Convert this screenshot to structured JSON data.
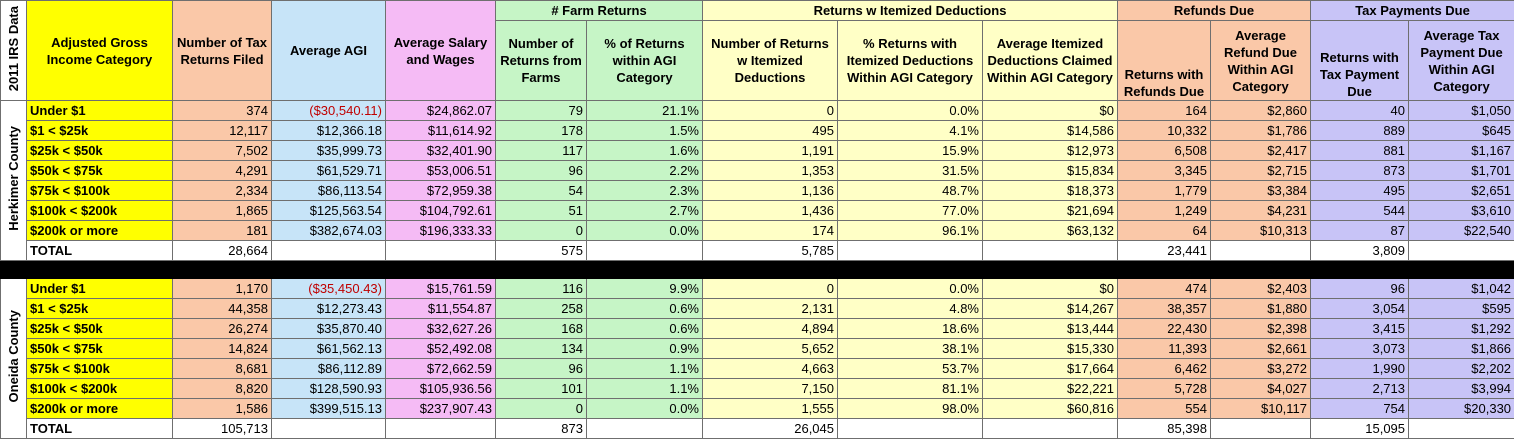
{
  "title": "2011 IRS Data",
  "colors": {
    "yellow": "#ffff00",
    "orange": "#fac8a8",
    "blue": "#c7e4f8",
    "pink": "#f5bbf5",
    "green": "#c6f5c6",
    "cream": "#ffffc6",
    "lavender": "#c8c4f7"
  },
  "groups": {
    "farm": "# Farm Returns",
    "itemized": "Returns w Itemized Deductions",
    "refunds": "Refunds Due",
    "taxpay": "Tax Payments Due"
  },
  "headers": [
    "Adjusted Gross Income Category",
    "Number of Tax Returns Filed",
    "Average AGI",
    "Average Salary and Wages",
    "Number of Returns from Farms",
    "% of Returns within AGI Category",
    "Number of Returns w Itemized Deductions",
    "% Returns with Itemized Deductions Within AGI Category",
    "Average Itemized Deductions Claimed Within AGI Category",
    "Returns with Refunds Due",
    "Average Refund Due Within AGI Category",
    "Returns with Tax Payment Due",
    "Average Tax Payment Due Within AGI Category"
  ],
  "sections": [
    {
      "county": "Herkimer County",
      "rows": [
        [
          "Under $1",
          "374",
          "($30,540.11)",
          "$24,862.07",
          "79",
          "21.1%",
          "0",
          "0.0%",
          "$0",
          "164",
          "$2,860",
          "40",
          "$1,050"
        ],
        [
          "$1 < $25k",
          "12,117",
          "$12,366.18",
          "$11,614.92",
          "178",
          "1.5%",
          "495",
          "4.1%",
          "$14,586",
          "10,332",
          "$1,786",
          "889",
          "$645"
        ],
        [
          "$25k < $50k",
          "7,502",
          "$35,999.73",
          "$32,401.90",
          "117",
          "1.6%",
          "1,191",
          "15.9%",
          "$12,973",
          "6,508",
          "$2,417",
          "881",
          "$1,167"
        ],
        [
          "$50k < $75k",
          "4,291",
          "$61,529.71",
          "$53,006.51",
          "96",
          "2.2%",
          "1,353",
          "31.5%",
          "$15,834",
          "3,345",
          "$2,715",
          "873",
          "$1,701"
        ],
        [
          "$75k < $100k",
          "2,334",
          "$86,113.54",
          "$72,959.38",
          "54",
          "2.3%",
          "1,136",
          "48.7%",
          "$18,373",
          "1,779",
          "$3,384",
          "495",
          "$2,651"
        ],
        [
          "$100k < $200k",
          "1,865",
          "$125,563.54",
          "$104,792.61",
          "51",
          "2.7%",
          "1,436",
          "77.0%",
          "$21,694",
          "1,249",
          "$4,231",
          "544",
          "$3,610"
        ],
        [
          "$200k or more",
          "181",
          "$382,674.03",
          "$196,333.33",
          "0",
          "0.0%",
          "174",
          "96.1%",
          "$63,132",
          "64",
          "$10,313",
          "87",
          "$22,540"
        ]
      ],
      "total": [
        "TOTAL",
        "28,664",
        "",
        "",
        "575",
        "",
        "5,785",
        "",
        "",
        "23,441",
        "",
        "3,809",
        ""
      ]
    },
    {
      "county": "Oneida County",
      "rows": [
        [
          "Under $1",
          "1,170",
          "($35,450.43)",
          "$15,761.59",
          "116",
          "9.9%",
          "0",
          "0.0%",
          "$0",
          "474",
          "$2,403",
          "96",
          "$1,042"
        ],
        [
          "$1 < $25k",
          "44,358",
          "$12,273.43",
          "$11,554.87",
          "258",
          "0.6%",
          "2,131",
          "4.8%",
          "$14,267",
          "38,357",
          "$1,880",
          "3,054",
          "$595"
        ],
        [
          "$25k < $50k",
          "26,274",
          "$35,870.40",
          "$32,627.26",
          "168",
          "0.6%",
          "4,894",
          "18.6%",
          "$13,444",
          "22,430",
          "$2,398",
          "3,415",
          "$1,292"
        ],
        [
          "$50k < $75k",
          "14,824",
          "$61,562.13",
          "$52,492.08",
          "134",
          "0.9%",
          "5,652",
          "38.1%",
          "$15,330",
          "11,393",
          "$2,661",
          "3,073",
          "$1,866"
        ],
        [
          "$75k < $100k",
          "8,681",
          "$86,112.89",
          "$72,662.59",
          "96",
          "1.1%",
          "4,663",
          "53.7%",
          "$17,664",
          "6,462",
          "$3,272",
          "1,990",
          "$2,202"
        ],
        [
          "$100k < $200k",
          "8,820",
          "$128,590.93",
          "$105,936.56",
          "101",
          "1.1%",
          "7,150",
          "81.1%",
          "$22,221",
          "5,728",
          "$4,027",
          "2,713",
          "$3,994"
        ],
        [
          "$200k or more",
          "1,586",
          "$399,515.13",
          "$237,907.43",
          "0",
          "0.0%",
          "1,555",
          "98.0%",
          "$60,816",
          "554",
          "$10,117",
          "754",
          "$20,330"
        ]
      ],
      "total": [
        "TOTAL",
        "105,713",
        "",
        "",
        "873",
        "",
        "26,045",
        "",
        "",
        "85,398",
        "",
        "15,095",
        ""
      ]
    }
  ]
}
